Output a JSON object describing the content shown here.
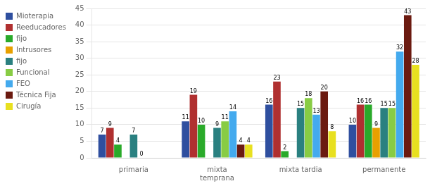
{
  "chart_data": {
    "type": "bar",
    "categories": [
      "primaria",
      "mixta\ntemprana",
      "mixta tardia",
      "permanente"
    ],
    "series": [
      {
        "name": "Mioterapia",
        "color": "#2F4F9F",
        "values": [
          7,
          11,
          16,
          10
        ],
        "value_labels": [
          "7",
          "11",
          "16",
          "10"
        ]
      },
      {
        "name": "Reeducadores",
        "color": "#B03030",
        "values": [
          9,
          19,
          23,
          16
        ],
        "value_labels": [
          "9",
          "19",
          "23",
          "16"
        ]
      },
      {
        "name": "fijo",
        "color": "#2AAA2A",
        "values": [
          4,
          10,
          2,
          16
        ],
        "value_labels": [
          "4",
          "10",
          "2",
          "16"
        ]
      },
      {
        "name": "Intrusores",
        "color": "#E8A000",
        "values": [
          0,
          0,
          0,
          9
        ],
        "value_labels": [
          null,
          null,
          null,
          "9"
        ]
      },
      {
        "name": "fijo",
        "color": "#2A8080",
        "values": [
          7,
          9,
          15,
          15
        ],
        "value_labels": [
          "7",
          "9",
          "15",
          "15"
        ]
      },
      {
        "name": "Funcional",
        "color": "#88CC44",
        "values": [
          0,
          11,
          18,
          15
        ],
        "value_labels": [
          "0",
          "11",
          "18",
          "15"
        ]
      },
      {
        "name": "FEO",
        "color": "#44AAEE",
        "values": [
          0,
          14,
          13,
          32
        ],
        "value_labels": [
          null,
          "14",
          "13",
          "32"
        ]
      },
      {
        "name": "Técnica Fija",
        "color": "#6B1A10",
        "values": [
          0,
          4,
          20,
          43
        ],
        "value_labels": [
          null,
          "4",
          "20",
          "43"
        ]
      },
      {
        "name": "Cirugía",
        "color": "#E8E020",
        "values": [
          0,
          4,
          8,
          28
        ],
        "value_labels": [
          null,
          "4",
          "8",
          "28"
        ]
      }
    ],
    "ylim": [
      0,
      45
    ],
    "yticks": [
      0,
      5,
      10,
      15,
      20,
      25,
      30,
      35,
      40,
      45
    ],
    "grid": true,
    "legend": "left",
    "data_labels": true
  }
}
